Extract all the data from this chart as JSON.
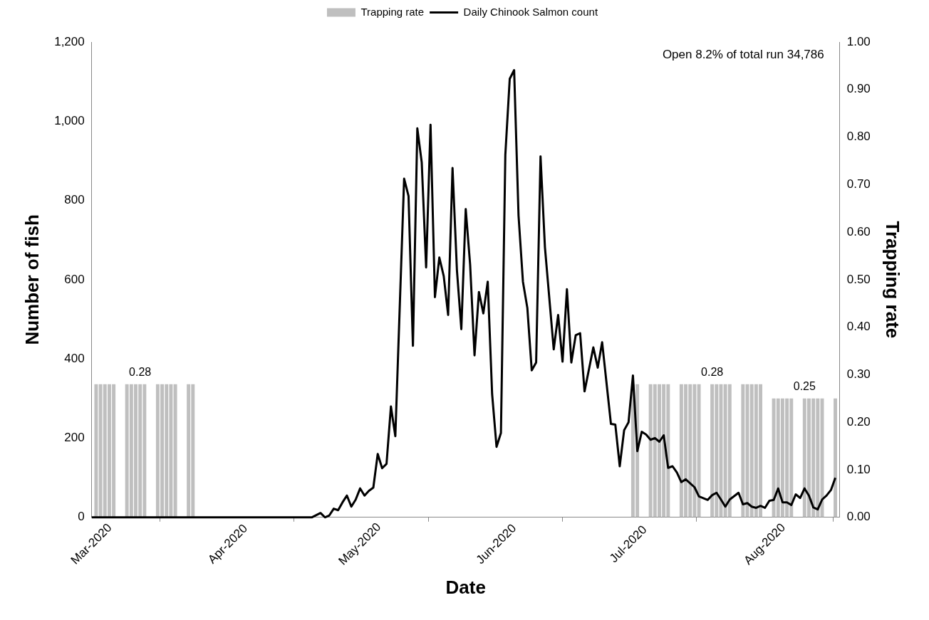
{
  "chart_data": {
    "type": "line",
    "xlabel": "Date",
    "ylabel": "Number of fish",
    "y2label": "Trapping rate",
    "legend": "top",
    "grid": false,
    "marker": "none",
    "line_style": "solid",
    "xlim": [
      "2020-03-01",
      "2020-08-18"
    ],
    "xticks": [
      {
        "value": "2020-03-01",
        "label": "Mar-2020"
      },
      {
        "value": "2020-04-01",
        "label": "Apr-2020"
      },
      {
        "value": "2020-05-01",
        "label": "May-2020"
      },
      {
        "value": "2020-06-01",
        "label": "Jun-2020"
      },
      {
        "value": "2020-07-01",
        "label": "Jul-2020"
      },
      {
        "value": "2020-08-01",
        "label": "Aug-2020"
      }
    ],
    "ylim": [
      0,
      1200
    ],
    "yticks": [
      0,
      200,
      400,
      600,
      800,
      {
        "value": 1000,
        "label": "1,000"
      },
      {
        "value": 1200,
        "label": "1,200"
      }
    ],
    "y2lim": [
      0,
      1
    ],
    "y2ticks": [
      {
        "value": 0,
        "label": "0.00"
      },
      {
        "value": 0.1,
        "label": "0.10"
      },
      {
        "value": 0.2,
        "label": "0.20"
      },
      {
        "value": 0.3,
        "label": "0.30"
      },
      {
        "value": 0.4,
        "label": "0.40"
      },
      {
        "value": 0.5,
        "label": "0.50"
      },
      {
        "value": 0.6,
        "label": "0.60"
      },
      {
        "value": 0.7,
        "label": "0.70"
      },
      {
        "value": 0.8,
        "label": "0.80"
      },
      {
        "value": 0.9,
        "label": "0.90"
      },
      {
        "value": 1,
        "label": "1.00"
      }
    ],
    "annotations": [
      "Open 8.2% of total run 34,786"
    ],
    "series": [
      {
        "name": "Trapping rate",
        "type": "bar",
        "axis": "y2",
        "color": "#bfbfbf",
        "x": [
          "2020-03-02",
          "2020-03-03",
          "2020-03-04",
          "2020-03-05",
          "2020-03-06",
          "2020-03-09",
          "2020-03-10",
          "2020-03-11",
          "2020-03-12",
          "2020-03-13",
          "2020-03-16",
          "2020-03-17",
          "2020-03-18",
          "2020-03-19",
          "2020-03-20",
          "2020-03-23",
          "2020-03-24",
          "2020-07-02",
          "2020-07-03",
          "2020-07-06",
          "2020-07-07",
          "2020-07-08",
          "2020-07-09",
          "2020-07-10",
          "2020-07-13",
          "2020-07-14",
          "2020-07-15",
          "2020-07-16",
          "2020-07-17",
          "2020-07-20",
          "2020-07-21",
          "2020-07-22",
          "2020-07-23",
          "2020-07-24",
          "2020-07-27",
          "2020-07-28",
          "2020-07-29",
          "2020-07-30",
          "2020-07-31",
          "2020-08-03",
          "2020-08-04",
          "2020-08-05",
          "2020-08-06",
          "2020-08-07",
          "2020-08-10",
          "2020-08-11",
          "2020-08-12",
          "2020-08-13",
          "2020-08-14",
          "2020-08-17"
        ],
        "values": [
          0.28,
          0.28,
          0.28,
          0.28,
          0.28,
          0.28,
          0.28,
          0.28,
          0.28,
          0.28,
          0.28,
          0.28,
          0.28,
          0.28,
          0.28,
          0.28,
          0.28,
          0.28,
          0.28,
          0.28,
          0.28,
          0.28,
          0.28,
          0.28,
          0.28,
          0.28,
          0.28,
          0.28,
          0.28,
          0.28,
          0.28,
          0.28,
          0.28,
          0.28,
          0.28,
          0.28,
          0.28,
          0.28,
          0.28,
          0.25,
          0.25,
          0.25,
          0.25,
          0.25,
          0.25,
          0.25,
          0.25,
          0.25,
          0.25,
          0.25
        ],
        "value_labels": [
          null,
          null,
          null,
          null,
          null,
          null,
          null,
          null,
          "0.28",
          null,
          null,
          null,
          null,
          null,
          null,
          null,
          null,
          null,
          null,
          null,
          null,
          null,
          null,
          null,
          null,
          null,
          null,
          null,
          null,
          "0.28",
          null,
          null,
          null,
          null,
          null,
          null,
          null,
          null,
          null,
          null,
          null,
          null,
          null,
          null,
          "0.25",
          null,
          null,
          null,
          null,
          null
        ]
      },
      {
        "name": "Daily Chinook Salmon count",
        "type": "line",
        "color": "#000000",
        "x": [
          "2020-03-01",
          "2020-04-20",
          "2020-04-22",
          "2020-04-23",
          "2020-04-24",
          "2020-04-25",
          "2020-04-26",
          "2020-04-27",
          "2020-04-28",
          "2020-04-29",
          "2020-04-30",
          "2020-05-01",
          "2020-05-02",
          "2020-05-03",
          "2020-05-04",
          "2020-05-05",
          "2020-05-06",
          "2020-05-07",
          "2020-05-08",
          "2020-05-09",
          "2020-05-11",
          "2020-05-12",
          "2020-05-13",
          "2020-05-14",
          "2020-05-15",
          "2020-05-16",
          "2020-05-17",
          "2020-05-18",
          "2020-05-19",
          "2020-05-20",
          "2020-05-21",
          "2020-05-22",
          "2020-05-23",
          "2020-05-24",
          "2020-05-25",
          "2020-05-26",
          "2020-05-27",
          "2020-05-28",
          "2020-05-29",
          "2020-05-30",
          "2020-05-31",
          "2020-06-01",
          "2020-06-02",
          "2020-06-03",
          "2020-06-04",
          "2020-06-05",
          "2020-06-06",
          "2020-06-07",
          "2020-06-08",
          "2020-06-09",
          "2020-06-10",
          "2020-06-11",
          "2020-06-12",
          "2020-06-14",
          "2020-06-15",
          "2020-06-16",
          "2020-06-17",
          "2020-06-18",
          "2020-06-19",
          "2020-06-20",
          "2020-06-21",
          "2020-06-23",
          "2020-06-24",
          "2020-06-25",
          "2020-06-27",
          "2020-06-28",
          "2020-06-29",
          "2020-06-30",
          "2020-07-01",
          "2020-07-02",
          "2020-07-03",
          "2020-07-04",
          "2020-07-05",
          "2020-07-06",
          "2020-07-07",
          "2020-07-08",
          "2020-07-09",
          "2020-07-10",
          "2020-07-11",
          "2020-07-12",
          "2020-07-13",
          "2020-07-14",
          "2020-07-16",
          "2020-07-17",
          "2020-07-19",
          "2020-07-20",
          "2020-07-21",
          "2020-07-22",
          "2020-07-23",
          "2020-07-24",
          "2020-07-26",
          "2020-07-27",
          "2020-07-28",
          "2020-07-29",
          "2020-07-30",
          "2020-07-31",
          "2020-08-01",
          "2020-08-02",
          "2020-08-03",
          "2020-08-04",
          "2020-08-05",
          "2020-08-06",
          "2020-08-07",
          "2020-08-08",
          "2020-08-09",
          "2020-08-10",
          "2020-08-11",
          "2020-08-12",
          "2020-08-13",
          "2020-08-14",
          "2020-08-15",
          "2020-08-16",
          "2020-08-17"
        ],
        "values": [
          0,
          0,
          11,
          0,
          5,
          22,
          18,
          38,
          55,
          27,
          45,
          73,
          55,
          67,
          75,
          160,
          124,
          135,
          280,
          205,
          855,
          811,
          433,
          982,
          896,
          631,
          991,
          556,
          656,
          609,
          511,
          882,
          624,
          475,
          778,
          638,
          409,
          569,
          515,
          595,
          311,
          178,
          213,
          915,
          1107,
          1129,
          762,
          595,
          529,
          371,
          391,
          911,
          682,
          424,
          511,
          393,
          576,
          391,
          460,
          465,
          318,
          429,
          378,
          442,
          236,
          234,
          129,
          220,
          240,
          358,
          167,
          216,
          209,
          196,
          200,
          191,
          207,
          125,
          129,
          113,
          89,
          96,
          76,
          53,
          44,
          56,
          62,
          45,
          27,
          45,
          62,
          33,
          36,
          27,
          24,
          29,
          24,
          42,
          44,
          73,
          38,
          38,
          31,
          58,
          49,
          73,
          55,
          25,
          20,
          45,
          55,
          69,
          100
        ]
      }
    ]
  }
}
